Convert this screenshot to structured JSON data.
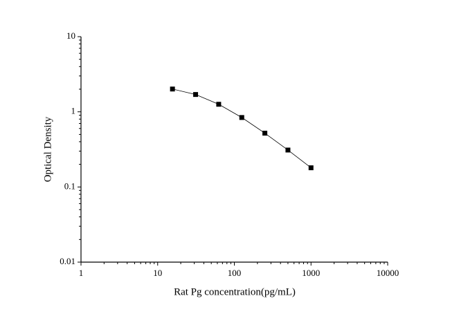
{
  "chart_data": {
    "type": "line",
    "x_label": "Rat Pg concentration(pg/mL)",
    "y_label": "Optical Density",
    "x": [
      15.6,
      31.25,
      62.5,
      125,
      250,
      500,
      1000
    ],
    "values": [
      2.01,
      1.7,
      1.26,
      0.84,
      0.52,
      0.31,
      0.18
    ],
    "color": "#000000",
    "marker": "square",
    "xscale": "log",
    "yscale": "log",
    "xlim": [
      1,
      10000
    ],
    "xticks": [
      1,
      10,
      100,
      1000,
      10000
    ],
    "ylim": [
      0.01,
      10
    ],
    "yticks": [
      0.01,
      0.1,
      1,
      10
    ],
    "grid": false
  }
}
